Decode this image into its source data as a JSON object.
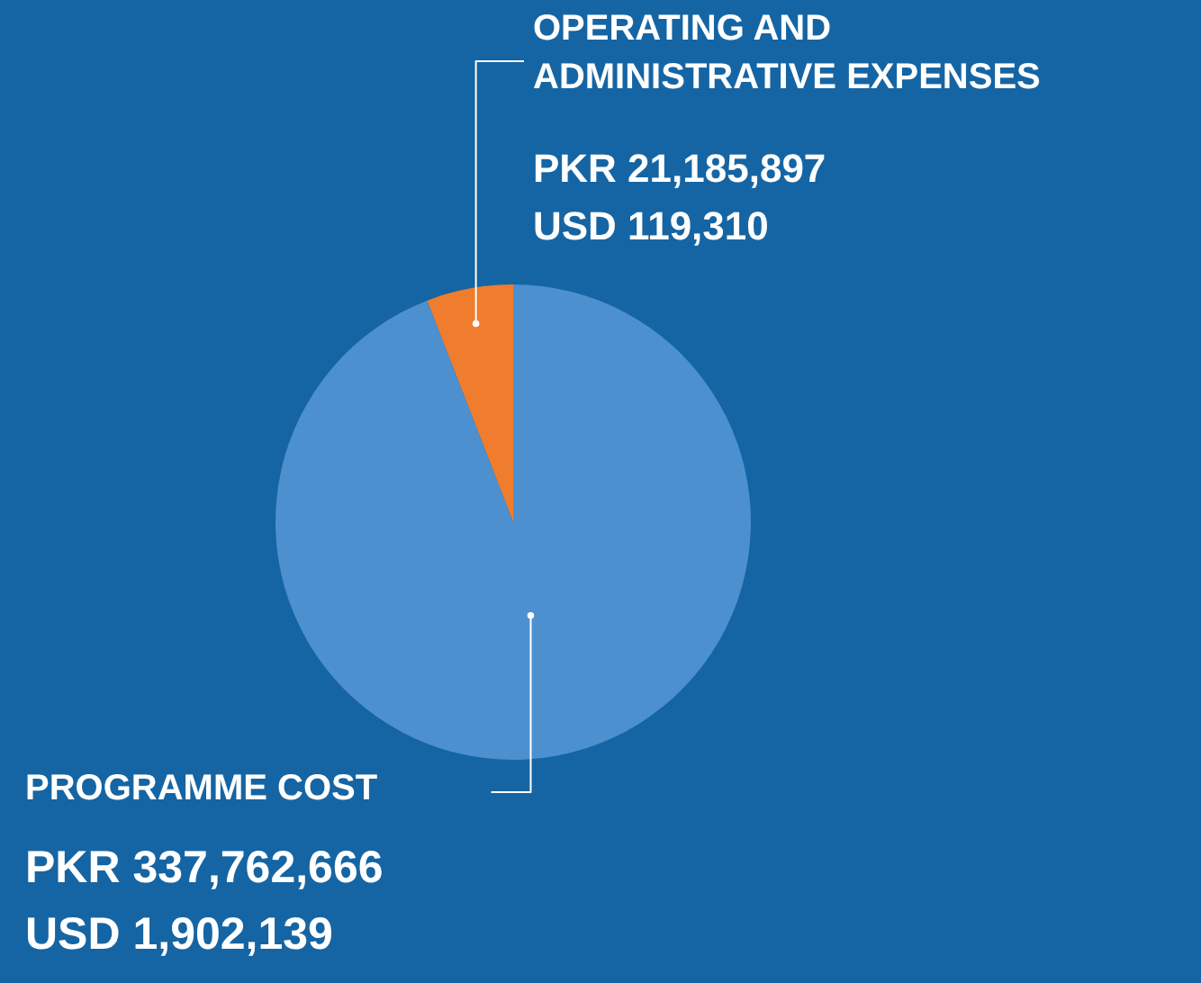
{
  "chart_data": {
    "type": "pie",
    "categories": [
      "OPERATING AND ADMINISTRATIVE EXPENSES",
      "PROGRAMME COST"
    ],
    "values": [
      21185897,
      337762666
    ],
    "colors": [
      "#ef7d2d",
      "#4d90d0"
    ],
    "value_labels": [
      "PKR 21,185,897\nUSD 119,310",
      "PKR 337,762,666\nUSD 1,902,139"
    ]
  }
}
